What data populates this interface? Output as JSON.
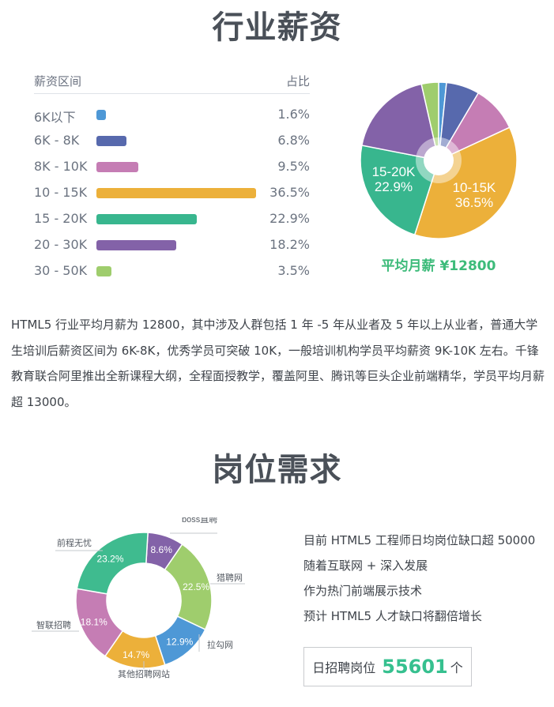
{
  "salary_section": {
    "title": "行业薪资",
    "table": {
      "col_range": "薪资区间",
      "col_share": "占比",
      "rows": [
        {
          "label": "6K以下",
          "pct": "1.6%",
          "value": 1.6,
          "color": "#4e98d6"
        },
        {
          "label": "6K - 8K",
          "pct": "6.8%",
          "value": 6.8,
          "color": "#5769ad"
        },
        {
          "label": "8K - 10K",
          "pct": "9.5%",
          "value": 9.5,
          "color": "#c57db4"
        },
        {
          "label": "10 - 15K",
          "pct": "36.5%",
          "value": 36.5,
          "color": "#ecb03a"
        },
        {
          "label": "15 - 20K",
          "pct": "22.9%",
          "value": 22.9,
          "color": "#38b68e"
        },
        {
          "label": "20 - 30K",
          "pct": "18.2%",
          "value": 18.2,
          "color": "#8362a8"
        },
        {
          "label": "30 - 50K",
          "pct": "3.5%",
          "value": 3.5,
          "color": "#9fcd6d"
        }
      ]
    },
    "pie_labels": [
      {
        "line1": "10-15K",
        "line2": "36.5%"
      },
      {
        "line1": "15-20K",
        "line2": "22.9%"
      }
    ],
    "average": "平均月薪 ¥12800",
    "paragraph": "HTML5 行业平均月薪为 12800，其中涉及人群包括 1 年 -5 年从业者及 5 年以上从业者，普通大学生培训后薪资区间为 6K-8K，优秀学员可突破 10K，一般培训机构学员平均薪资 9K-10K 左右。千锋教育联合阿里推出全新课程大纲，全程面授教学，覆盖阿里、腾讯等巨头企业前端精华，学员平均月薪超 13000。"
  },
  "jobs_section": {
    "title": "岗位需求",
    "facts": [
      "目前 HTML5 工程师日均岗位缺口超 50000",
      "随着互联网 + 深入发展",
      "作为热门前端展示技术",
      "预计 HTML5 人才缺口将翻倍增长"
    ],
    "daily_jobs": {
      "label": "日招聘岗位",
      "value": "55601",
      "unit": "个"
    }
  },
  "chart_data": [
    {
      "type": "bar",
      "title": "行业薪资",
      "orientation": "horizontal",
      "categories": [
        "6K以下",
        "6K - 8K",
        "8K - 10K",
        "10 - 15K",
        "15 - 20K",
        "20 - 30K",
        "30 - 50K"
      ],
      "values": [
        1.6,
        6.8,
        9.5,
        36.5,
        22.9,
        18.2,
        3.5
      ],
      "unit": "%",
      "xlabel": "占比",
      "ylabel": "薪资区间",
      "colors": [
        "#4e98d6",
        "#5769ad",
        "#c57db4",
        "#ecb03a",
        "#38b68e",
        "#8362a8",
        "#9fcd6d"
      ],
      "grid": false
    },
    {
      "type": "pie",
      "title": "平均月薪 ¥12800",
      "categories": [
        "6K以下",
        "6K-8K",
        "8K-10K",
        "10-15K",
        "15-20K",
        "20-30K",
        "30-50K"
      ],
      "values": [
        1.6,
        6.8,
        9.5,
        36.5,
        22.9,
        18.2,
        3.5
      ],
      "colors": [
        "#4e98d6",
        "#5769ad",
        "#c57db4",
        "#ecb03a",
        "#38b68e",
        "#8362a8",
        "#9fcd6d"
      ],
      "labeled_slices": [
        "10-15K 36.5%",
        "15-20K 22.9%"
      ],
      "start": "12 o'clock, clockwise"
    },
    {
      "type": "pie",
      "subtype": "donut",
      "title": "岗位需求",
      "categories": [
        "boss直聘",
        "猎聘网",
        "拉勾网",
        "其他招聘网站",
        "智联招聘",
        "前程无忧"
      ],
      "values": [
        8.6,
        22.5,
        12.9,
        14.7,
        18.1,
        23.2
      ],
      "labels": [
        "8.6%",
        "22.5%",
        "12.9%",
        "14.7%",
        "18.1%",
        "23.2%"
      ],
      "colors": [
        "#8362a8",
        "#9fcd6d",
        "#4e98d6",
        "#ecb03a",
        "#c57db4",
        "#3fbb8f"
      ],
      "start": "12 o'clock, clockwise"
    }
  ]
}
